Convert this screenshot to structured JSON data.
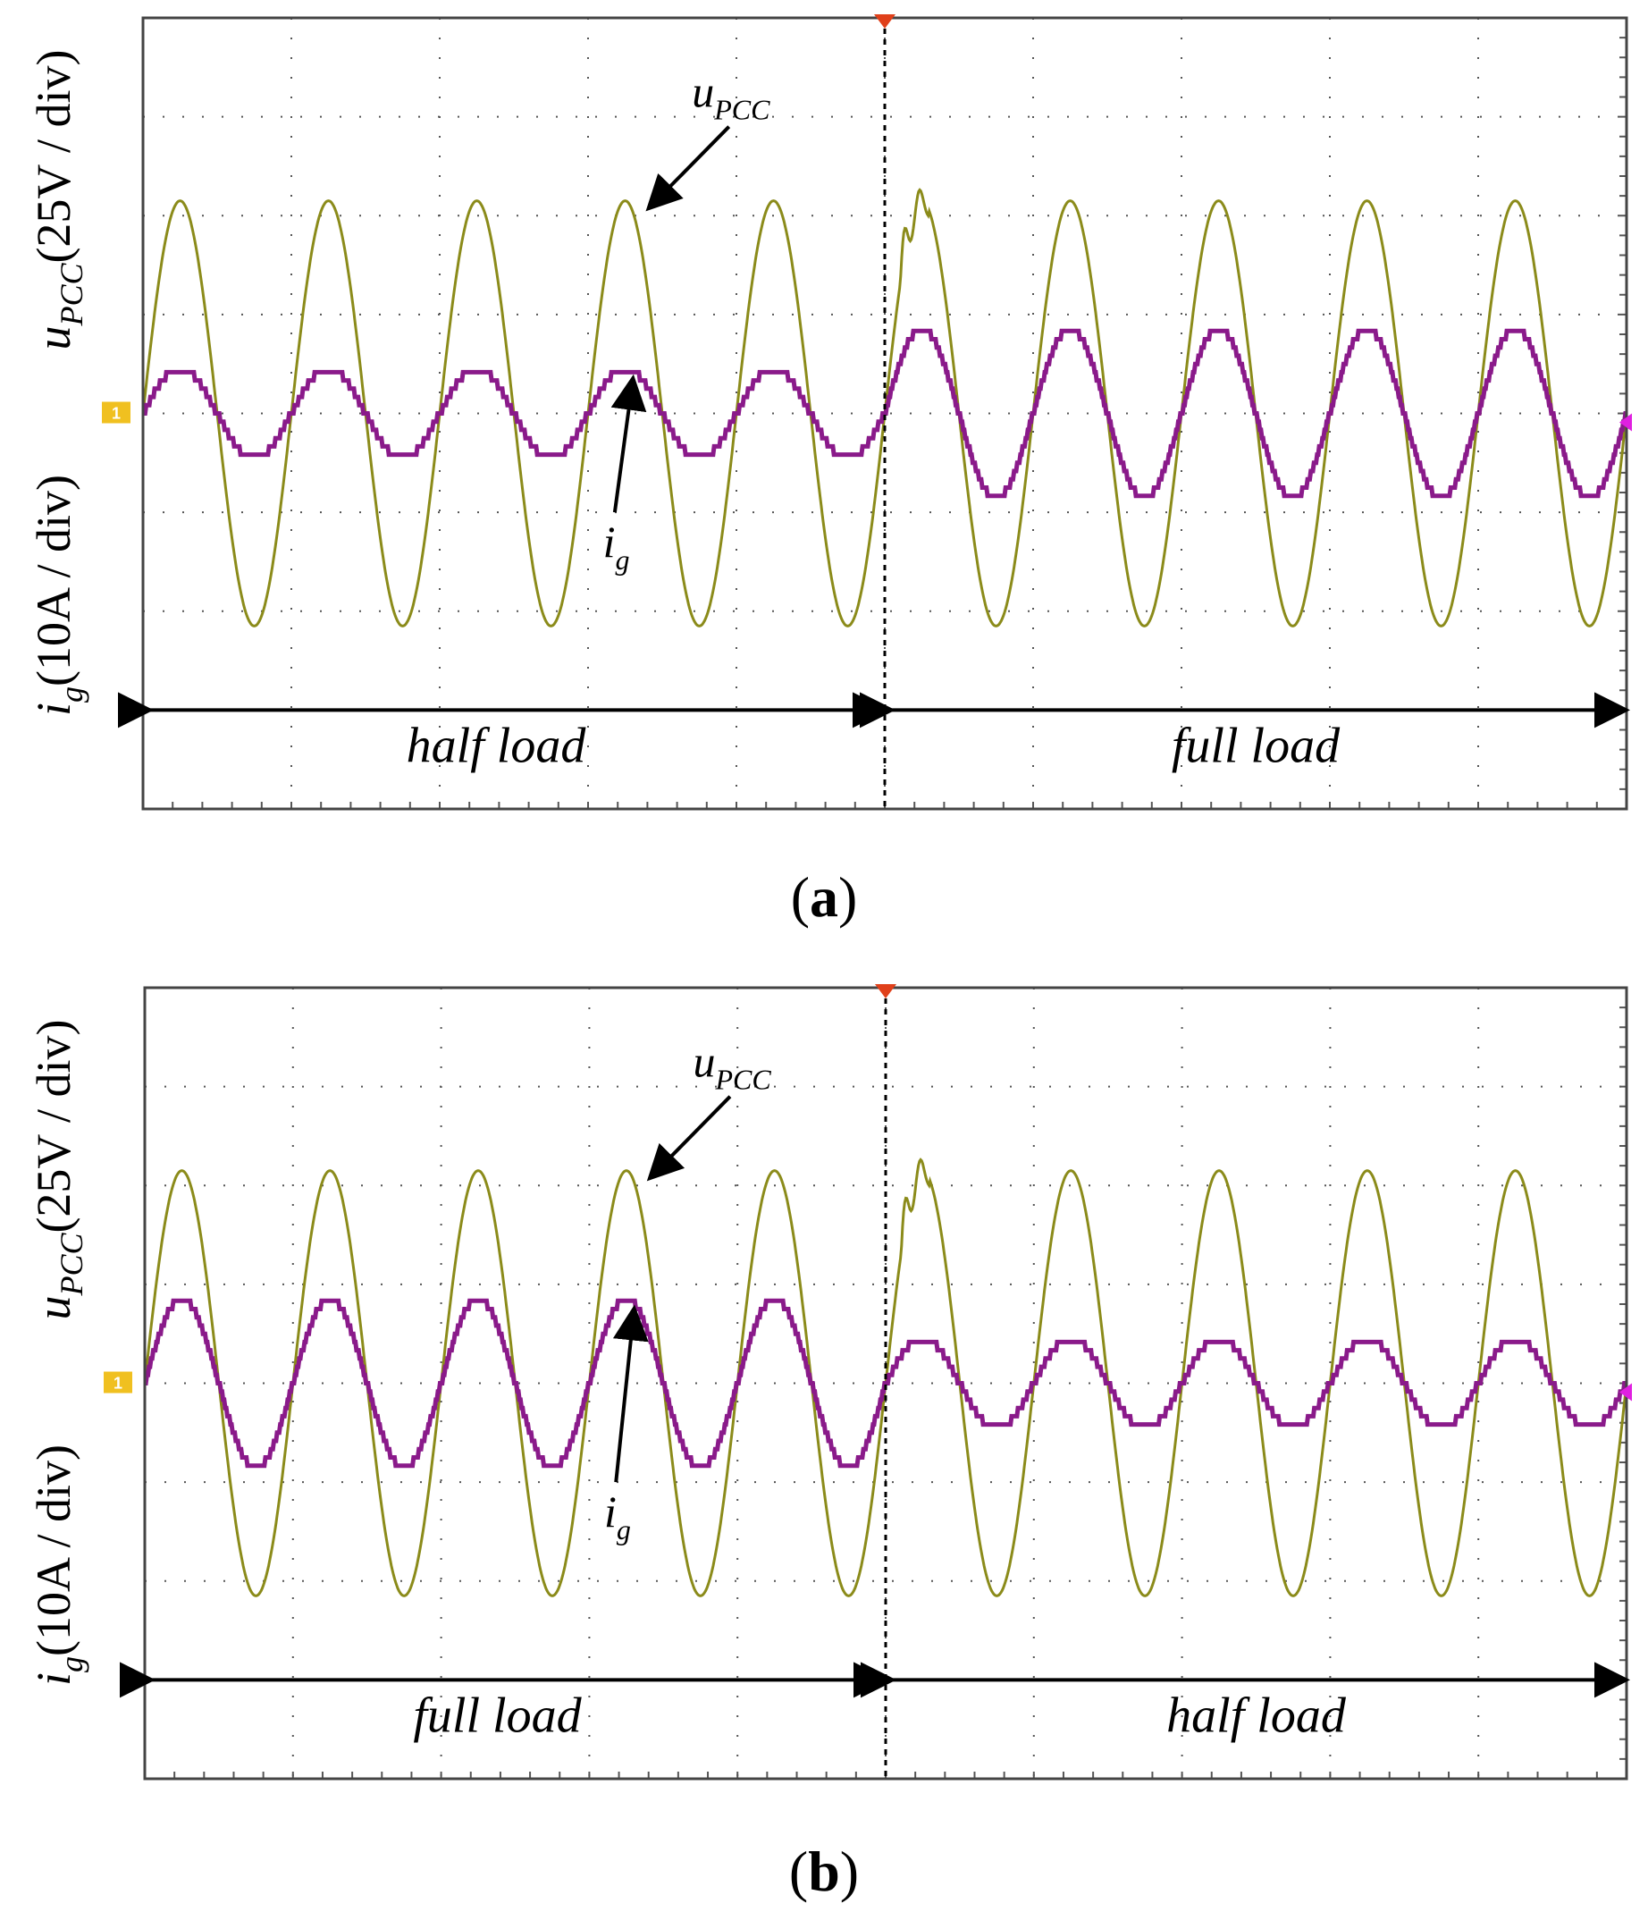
{
  "chart_data": [
    {
      "type": "line",
      "panel_label": "(a)",
      "panel_letter": "a",
      "x_divisions": 10,
      "y_divisions": 8,
      "grid": "dotted",
      "ylabel_top": {
        "var": "u",
        "sub": "PCC",
        "unit": "(25V / div)"
      },
      "ylabel_bottom": {
        "var": "i",
        "sub": "g",
        "unit": "(10A / div)"
      },
      "channel_marker": "1",
      "trigger_time_div": 5,
      "annotations": [
        {
          "var": "u",
          "sub": "PCC",
          "points_to": "u_PCC trace peak"
        },
        {
          "var": "i",
          "sub": "g",
          "points_to": "i_g trace peak"
        }
      ],
      "regions": [
        {
          "label": "half load",
          "start_div": 0,
          "end_div": 5
        },
        {
          "label": "full load",
          "start_div": 5,
          "end_div": 10
        }
      ],
      "series": [
        {
          "name": "u_PCC",
          "color": "#8b8b1a",
          "amplitude_div": 2.15,
          "cycles": 10,
          "phase": 0.5,
          "offset_div": 0
        },
        {
          "name": "i_g",
          "color": "#8a1a8a",
          "amplitude_div": [
            0.45,
            0.85
          ],
          "cycles": 10,
          "phase": 0.5,
          "offset_div": 0
        }
      ]
    },
    {
      "type": "line",
      "panel_label": "(b)",
      "panel_letter": "b",
      "x_divisions": 10,
      "y_divisions": 8,
      "grid": "dotted",
      "ylabel_top": {
        "var": "u",
        "sub": "PCC",
        "unit": "(25V / div)"
      },
      "ylabel_bottom": {
        "var": "i",
        "sub": "g",
        "unit": "(10A / div)"
      },
      "channel_marker": "1",
      "trigger_time_div": 5,
      "annotations": [
        {
          "var": "u",
          "sub": "PCC",
          "points_to": "u_PCC trace peak"
        },
        {
          "var": "i",
          "sub": "g",
          "points_to": "i_g trace peak"
        }
      ],
      "regions": [
        {
          "label": "full load",
          "start_div": 0,
          "end_div": 5
        },
        {
          "label": "half load",
          "start_div": 5,
          "end_div": 10
        }
      ],
      "series": [
        {
          "name": "u_PCC",
          "color": "#8b8b1a",
          "amplitude_div": 2.15,
          "cycles": 10,
          "phase": 0.5,
          "offset_div": 0
        },
        {
          "name": "i_g",
          "color": "#8a1a8a",
          "amplitude_div": [
            0.85,
            0.45
          ],
          "cycles": 10,
          "phase": 0.5,
          "offset_div": 0
        }
      ]
    }
  ]
}
